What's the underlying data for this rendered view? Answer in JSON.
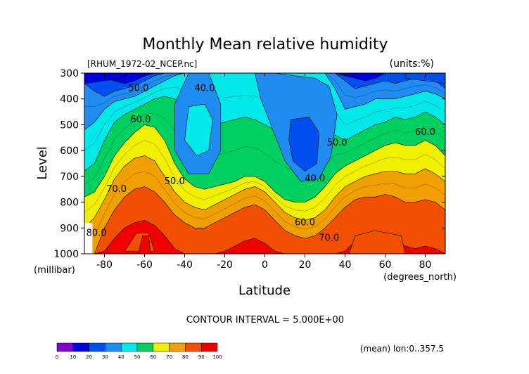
{
  "chart_data": {
    "type": "heatmap",
    "title": "Monthly Mean relative humidity",
    "file_label": "[RHUM_1972-02_NCEP.nc]",
    "units_label": "(units:%)",
    "xlabel": "Latitude",
    "x_unit": "(degrees_north)",
    "ylabel": "Level",
    "y_unit": "(millibar)",
    "xlim": [
      -90,
      90
    ],
    "ylim": [
      300,
      1000
    ],
    "x_ticks": [
      {
        "value": -80,
        "label": "-80"
      },
      {
        "value": -60,
        "label": "-60"
      },
      {
        "value": -40,
        "label": "-40"
      },
      {
        "value": -20,
        "label": "-20"
      },
      {
        "value": 0,
        "label": "0"
      },
      {
        "value": 20,
        "label": "20"
      },
      {
        "value": 40,
        "label": "40"
      },
      {
        "value": 60,
        "label": "60"
      },
      {
        "value": 80,
        "label": "80"
      }
    ],
    "y_ticks": [
      {
        "value": 300,
        "label": "300"
      },
      {
        "value": 400,
        "label": "400"
      },
      {
        "value": 500,
        "label": "500"
      },
      {
        "value": 600,
        "label": "600"
      },
      {
        "value": 700,
        "label": "700"
      },
      {
        "value": 800,
        "label": "800"
      },
      {
        "value": 900,
        "label": "900"
      },
      {
        "value": 1000,
        "label": "1000"
      }
    ],
    "contour_interval_text": "CONTOUR INTERVAL = 5.000E+00",
    "note": "(mean) lon:0..357.5",
    "contour_labels": [
      {
        "text": "50.0",
        "lat": -63,
        "lev": 370
      },
      {
        "text": "40.0",
        "lat": -30,
        "lev": 370
      },
      {
        "text": "60.0",
        "lat": -62,
        "lev": 490
      },
      {
        "text": "60.0",
        "lat": 80,
        "lev": 540
      },
      {
        "text": "50.0",
        "lat": 36,
        "lev": 580
      },
      {
        "text": "40.0",
        "lat": 25,
        "lev": 720
      },
      {
        "text": "50.0",
        "lat": -45,
        "lev": 730
      },
      {
        "text": "70.0",
        "lat": -74,
        "lev": 760
      },
      {
        "text": "60.0",
        "lat": 20,
        "lev": 890
      },
      {
        "text": "70.0",
        "lat": 32,
        "lev": 950
      },
      {
        "text": "80.0",
        "lat": -84,
        "lev": 930
      }
    ],
    "colorbar": {
      "bins": [
        {
          "color": "#8000d0"
        },
        {
          "color": "#0000e0"
        },
        {
          "color": "#0050f0"
        },
        {
          "color": "#1e8cf0"
        },
        {
          "color": "#00e8e8"
        },
        {
          "color": "#00d060"
        },
        {
          "color": "#f0f000"
        },
        {
          "color": "#f0a000"
        },
        {
          "color": "#f05000"
        },
        {
          "color": "#f00000"
        }
      ],
      "tick_labels": [
        "0",
        "10",
        "20",
        "30",
        "40",
        "50",
        "60",
        "70",
        "80",
        "90",
        "100"
      ]
    },
    "colors_by_band": {
      "20": "#0050f0",
      "30": "#1e8cf0",
      "40": "#00e8e8",
      "50": "#00d060",
      "60": "#f0f000",
      "70": "#f0a000",
      "80": "#f05000",
      "90": "#f00000"
    },
    "band_boundaries": {
      "lat": [
        -90,
        -85,
        -80,
        -75,
        -70,
        -65,
        -60,
        -55,
        -50,
        -45,
        -40,
        -35,
        -30,
        -25,
        -20,
        -15,
        -10,
        -5,
        0,
        5,
        10,
        15,
        20,
        25,
        30,
        35,
        40,
        45,
        50,
        55,
        60,
        65,
        70,
        75,
        80,
        85,
        90
      ],
      "b30": [
        300,
        310,
        320,
        330,
        340,
        330,
        310,
        300,
        300,
        300,
        300,
        300,
        300,
        300,
        300,
        300,
        300,
        300,
        300,
        300,
        300,
        300,
        300,
        300,
        300,
        300,
        310,
        320,
        330,
        320,
        300,
        300,
        300,
        300,
        300,
        310,
        340
      ],
      "b40": [
        340,
        370,
        390,
        370,
        360,
        350,
        330,
        310,
        300,
        300,
        300,
        300,
        300,
        300,
        300,
        300,
        300,
        300,
        300,
        300,
        300,
        300,
        300,
        300,
        300,
        300,
        330,
        360,
        350,
        340,
        330,
        340,
        330,
        320,
        320,
        330,
        360
      ],
      "b50": [
        520,
        490,
        440,
        410,
        400,
        390,
        370,
        350,
        330,
        310,
        300,
        300,
        300,
        300,
        300,
        300,
        300,
        300,
        300,
        300,
        300,
        300,
        300,
        300,
        300,
        360,
        440,
        430,
        420,
        400,
        400,
        400,
        390,
        380,
        370,
        380,
        400
      ],
      "b60": [
        680,
        650,
        560,
        490,
        460,
        440,
        420,
        400,
        390,
        400,
        430,
        470,
        500,
        500,
        490,
        480,
        470,
        480,
        500,
        520,
        540,
        560,
        580,
        600,
        580,
        540,
        560,
        540,
        520,
        500,
        490,
        470,
        480,
        470,
        450,
        470,
        500
      ],
      "b70": [
        780,
        760,
        700,
        620,
        570,
        530,
        500,
        510,
        560,
        650,
        710,
        740,
        750,
        740,
        730,
        720,
        700,
        700,
        720,
        760,
        790,
        800,
        800,
        780,
        740,
        690,
        660,
        640,
        620,
        600,
        580,
        570,
        580,
        580,
        560,
        580,
        620
      ],
      "b80": [
        900,
        860,
        790,
        710,
        660,
        630,
        620,
        640,
        700,
        760,
        800,
        820,
        830,
        810,
        790,
        770,
        750,
        740,
        760,
        800,
        840,
        860,
        870,
        860,
        830,
        780,
        740,
        720,
        700,
        690,
        680,
        680,
        690,
        690,
        670,
        690,
        720
      ],
      "b90": [
        1000,
        1000,
        900,
        830,
        780,
        750,
        740,
        760,
        800,
        850,
        880,
        900,
        900,
        880,
        860,
        840,
        820,
        810,
        830,
        870,
        910,
        930,
        940,
        930,
        900,
        860,
        820,
        790,
        780,
        780,
        770,
        780,
        800,
        800,
        790,
        800,
        830
      ],
      "b100": [
        1000,
        1000,
        990,
        940,
        900,
        880,
        870,
        890,
        930,
        980,
        1000,
        1000,
        1000,
        1000,
        990,
        970,
        950,
        940,
        960,
        990,
        1000,
        1000,
        1000,
        1000,
        1000,
        1000,
        990,
        950,
        930,
        930,
        930,
        950,
        970,
        980,
        970,
        980,
        1000
      ]
    },
    "low_cores": [
      {
        "color": "#1e8cf0",
        "points": [
          [
            -45,
            420
          ],
          [
            -38,
            300
          ],
          [
            -28,
            300
          ],
          [
            -22,
            420
          ],
          [
            -22,
            600
          ],
          [
            -28,
            690
          ],
          [
            -38,
            690
          ],
          [
            -45,
            600
          ]
        ]
      },
      {
        "color": "#1e8cf0",
        "points": [
          [
            -5,
            300
          ],
          [
            5,
            300
          ],
          [
            15,
            310
          ],
          [
            25,
            320
          ],
          [
            32,
            350
          ],
          [
            36,
            460
          ],
          [
            33,
            620
          ],
          [
            27,
            710
          ],
          [
            18,
            720
          ],
          [
            10,
            640
          ],
          [
            4,
            520
          ],
          [
            -2,
            400
          ]
        ]
      },
      {
        "color": "#0050f0",
        "points": [
          [
            13,
            480
          ],
          [
            22,
            470
          ],
          [
            27,
            530
          ],
          [
            26,
            650
          ],
          [
            20,
            680
          ],
          [
            14,
            640
          ],
          [
            12,
            560
          ]
        ]
      },
      {
        "color": "#0000e0",
        "points": [
          [
            -90,
            300
          ],
          [
            -68,
            300
          ],
          [
            -72,
            320
          ],
          [
            -80,
            330
          ],
          [
            -90,
            340
          ]
        ]
      },
      {
        "color": "#0050f0",
        "points": [
          [
            70,
            300
          ],
          [
            90,
            300
          ],
          [
            90,
            340
          ],
          [
            80,
            330
          ],
          [
            70,
            320
          ]
        ]
      },
      {
        "color": "#00e8e8",
        "points": [
          [
            -38,
            430
          ],
          [
            -30,
            420
          ],
          [
            -26,
            480
          ],
          [
            -28,
            600
          ],
          [
            -34,
            620
          ],
          [
            -40,
            560
          ]
        ]
      },
      {
        "color": "#f05000",
        "points": [
          [
            -70,
            990
          ],
          [
            -64,
            920
          ],
          [
            -58,
            920
          ],
          [
            -55,
            990
          ]
        ]
      },
      {
        "color": "#f00000",
        "points": [
          [
            -63,
            1000
          ],
          [
            -61,
            930
          ],
          [
            -58,
            930
          ],
          [
            -57,
            1000
          ]
        ]
      },
      {
        "color": "#f05000",
        "points": [
          [
            42,
            1000
          ],
          [
            45,
            930
          ],
          [
            55,
            910
          ],
          [
            68,
            930
          ],
          [
            70,
            1000
          ]
        ]
      }
    ],
    "high_cores": []
  }
}
